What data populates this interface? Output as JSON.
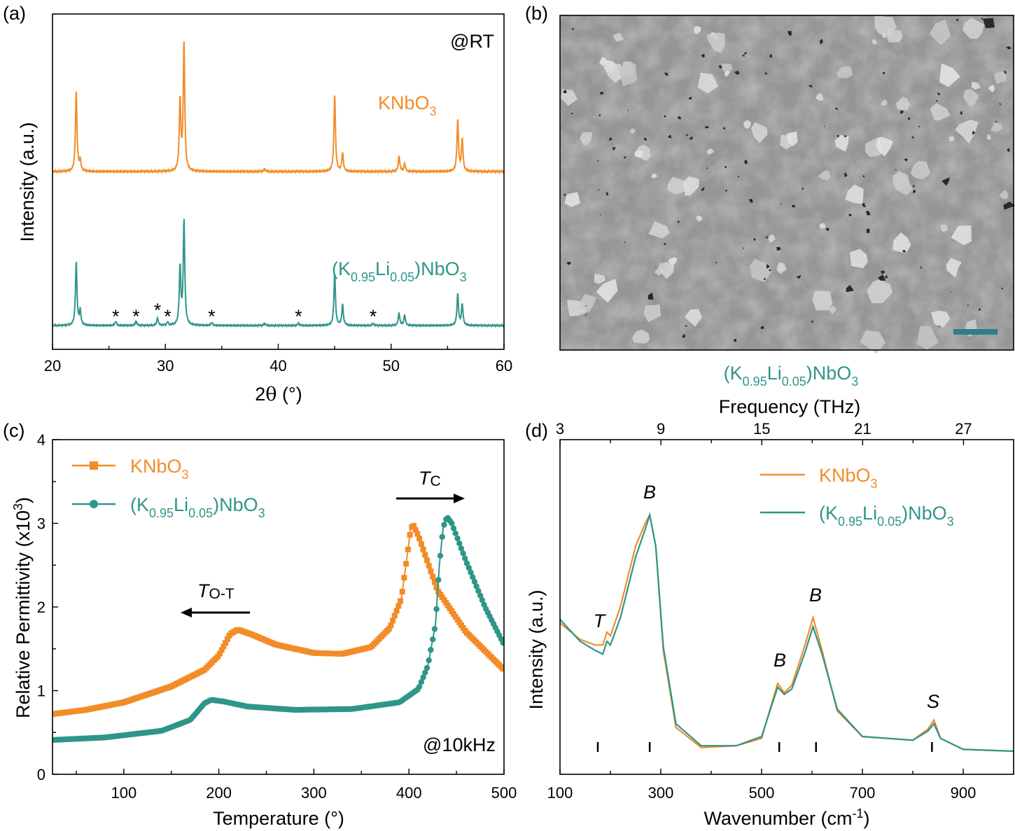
{
  "colors": {
    "orange": "#F28C28",
    "teal": "#2E9688",
    "scalebar": "#2E7F8C"
  },
  "panel_a": {
    "label": "(a)",
    "note": "@RT",
    "s1_base": "KNbO",
    "s1_sub": "3",
    "s2_a": "(K",
    "s2_b": "0.95",
    "s2_c": "Li",
    "s2_d": "0.05",
    "s2_e": ")NbO",
    "s2_f": "3",
    "ylabel": "Intensity (a.u.)",
    "xlabel_pre": "2",
    "xlabel_theta": "θ",
    "xlabel_unit": " (°)",
    "star": "*"
  },
  "panel_b": {
    "label": "(b)",
    "cap_a": "(K",
    "cap_b": "0.95",
    "cap_c": "Li",
    "cap_d": "0.05",
    "cap_e": ")NbO",
    "cap_f": "3"
  },
  "panel_c": {
    "label": "(c)",
    "note": "@10kHz",
    "l1_base": "KNbO",
    "l1_sub": "3",
    "l2_a": "(K",
    "l2_b": "0.95",
    "l2_c": "Li",
    "l2_d": "0.05",
    "l2_e": ")NbO",
    "l2_f": "3",
    "ylabel_a": "Relative Permittivity (x10",
    "ylabel_b": "3",
    "ylabel_c": ")",
    "xlabel": "Temperature (°)",
    "tc_a": "T",
    "tc_b": "C",
    "tot_a": "T",
    "tot_b": "O-T"
  },
  "panel_d": {
    "label": "(d)",
    "l1_base": "KNbO",
    "l1_sub": "3",
    "l2_a": "(K",
    "l2_b": "0.95",
    "l2_c": "Li",
    "l2_d": "0.05",
    "l2_e": ")NbO",
    "l2_f": "3",
    "ylabel": "Intensity (a.u.)",
    "xlabel_a": "Wavenumber (cm",
    "xlabel_b": "-1",
    "xlabel_c": ")",
    "top_label": "Frequency (THz)",
    "peak_T": "T",
    "peak_B1": "B",
    "peak_B2": "B",
    "peak_B3": "B",
    "peak_S": "S"
  },
  "chart_data": [
    {
      "type": "line",
      "panel": "a",
      "title": "",
      "xlabel": "2θ (°)",
      "ylabel": "Intensity (a.u.)",
      "xlim": [
        20,
        60
      ],
      "xticks": [
        20,
        30,
        40,
        50,
        60
      ],
      "xtick_labels": [
        "20",
        "30",
        "40",
        "50",
        "60"
      ],
      "series": [
        {
          "name": "KNbO3",
          "peaks": [
            [
              22.1,
              0.62
            ],
            [
              22.45,
              0.08
            ],
            [
              31.3,
              0.55
            ],
            [
              31.65,
              1.0
            ],
            [
              38.8,
              0.02
            ],
            [
              45.0,
              0.6
            ],
            [
              45.7,
              0.14
            ],
            [
              50.7,
              0.12
            ],
            [
              51.2,
              0.06
            ],
            [
              55.9,
              0.4
            ],
            [
              56.3,
              0.25
            ]
          ]
        },
        {
          "name": "(K0.95Li0.05)NbO3",
          "peaks": [
            [
              22.1,
              0.6
            ],
            [
              22.45,
              0.14
            ],
            [
              25.6,
              0.04
            ],
            [
              27.4,
              0.04
            ],
            [
              29.3,
              0.07
            ],
            [
              30.2,
              0.03
            ],
            [
              31.3,
              0.55
            ],
            [
              31.65,
              1.0
            ],
            [
              34.1,
              0.03
            ],
            [
              38.8,
              0.02
            ],
            [
              41.8,
              0.02
            ],
            [
              45.0,
              0.5
            ],
            [
              45.7,
              0.2
            ],
            [
              48.4,
              0.02
            ],
            [
              50.7,
              0.12
            ],
            [
              51.2,
              0.1
            ],
            [
              55.9,
              0.3
            ],
            [
              56.3,
              0.2
            ]
          ]
        }
      ],
      "impurity_stars_2theta": [
        25.6,
        27.4,
        29.3,
        30.2,
        34.1,
        41.8,
        48.4
      ]
    },
    {
      "type": "line",
      "panel": "c",
      "title": "",
      "xlabel": "Temperature (°)",
      "ylabel": "Relative Permittivity (x10^3)",
      "xlim": [
        25,
        500
      ],
      "ylim": [
        0,
        4
      ],
      "xticks": [
        100,
        200,
        300,
        400,
        500
      ],
      "xtick_labels": [
        "100",
        "200",
        "300",
        "400",
        "500"
      ],
      "yticks": [
        0,
        1,
        2,
        3,
        4
      ],
      "ytick_labels": [
        "0",
        "1",
        "2",
        "3",
        "4"
      ],
      "series": [
        {
          "name": "KNbO3",
          "x": [
            25,
            60,
            100,
            150,
            185,
            200,
            212,
            220,
            235,
            260,
            300,
            330,
            360,
            380,
            392,
            398,
            402,
            405,
            410,
            430,
            460,
            500
          ],
          "y": [
            0.72,
            0.77,
            0.86,
            1.05,
            1.25,
            1.42,
            1.68,
            1.73,
            1.67,
            1.55,
            1.45,
            1.44,
            1.52,
            1.75,
            2.1,
            2.6,
            2.95,
            2.97,
            2.85,
            2.2,
            1.7,
            1.25
          ]
        },
        {
          "name": "(K0.95Li0.05)NbO3",
          "x": [
            25,
            80,
            140,
            170,
            185,
            192,
            205,
            230,
            280,
            340,
            390,
            410,
            420,
            428,
            432,
            436,
            440,
            445,
            460,
            480,
            500
          ],
          "y": [
            0.41,
            0.44,
            0.52,
            0.65,
            0.85,
            0.89,
            0.87,
            0.81,
            0.77,
            0.78,
            0.86,
            1.02,
            1.3,
            1.8,
            2.5,
            2.95,
            3.08,
            3.0,
            2.55,
            2.0,
            1.55
          ]
        }
      ]
    },
    {
      "type": "line",
      "panel": "d",
      "title": "",
      "xlabel": "Wavenumber (cm-1)",
      "ylabel": "Intensity (a.u.)",
      "xlim": [
        100,
        1000
      ],
      "xticks": [
        100,
        300,
        500,
        700,
        900
      ],
      "xtick_labels": [
        "100",
        "300",
        "500",
        "700",
        "900"
      ],
      "top_axis": {
        "label": "Frequency (THz)",
        "ticks": [
          3,
          9,
          15,
          21,
          27
        ],
        "tick_labels": [
          "3",
          "9",
          "15",
          "21",
          "27"
        ]
      },
      "series": [
        {
          "name": "KNbO3",
          "x": [
            100,
            140,
            170,
            185,
            193,
            200,
            220,
            250,
            270,
            278,
            290,
            305,
            330,
            380,
            450,
            500,
            520,
            532,
            545,
            560,
            585,
            602,
            620,
            650,
            700,
            800,
            830,
            842,
            855,
            900,
            1000
          ],
          "y": [
            0.7,
            0.61,
            0.58,
            0.58,
            0.65,
            0.63,
            0.79,
            1.12,
            1.25,
            1.29,
            1.12,
            0.55,
            0.13,
            0.02,
            0.03,
            0.07,
            0.26,
            0.37,
            0.32,
            0.36,
            0.57,
            0.73,
            0.55,
            0.22,
            0.08,
            0.06,
            0.12,
            0.17,
            0.07,
            0.01,
            0.0
          ]
        },
        {
          "name": "(K0.95Li0.05)NbO3",
          "x": [
            100,
            140,
            170,
            185,
            193,
            200,
            220,
            250,
            270,
            278,
            290,
            305,
            330,
            380,
            450,
            500,
            520,
            532,
            545,
            560,
            585,
            602,
            620,
            650,
            700,
            800,
            830,
            842,
            855,
            900,
            1000
          ],
          "y": [
            0.72,
            0.6,
            0.55,
            0.53,
            0.6,
            0.58,
            0.73,
            1.06,
            1.22,
            1.29,
            1.12,
            0.57,
            0.15,
            0.03,
            0.03,
            0.08,
            0.25,
            0.35,
            0.31,
            0.34,
            0.53,
            0.68,
            0.53,
            0.23,
            0.08,
            0.06,
            0.11,
            0.15,
            0.07,
            0.01,
            0.0
          ]
        }
      ],
      "reference_marks_cm1": [
        175,
        278,
        535,
        608,
        838
      ],
      "peak_labels": [
        {
          "text": "T",
          "x": 190
        },
        {
          "text": "B",
          "x": 278
        },
        {
          "text": "B",
          "x": 535
        },
        {
          "text": "B",
          "x": 605
        },
        {
          "text": "S",
          "x": 838
        }
      ]
    }
  ]
}
